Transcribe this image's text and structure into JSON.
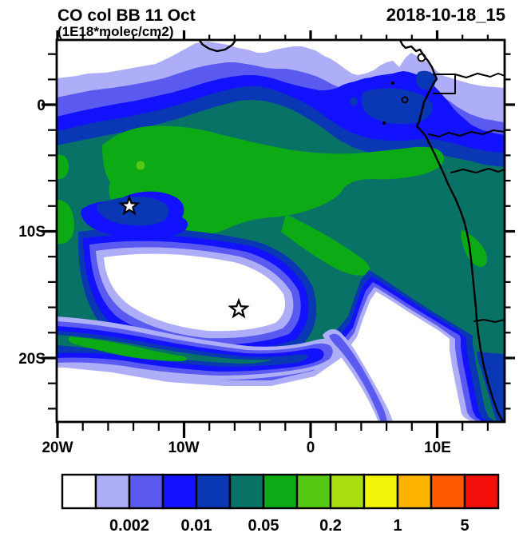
{
  "titles": {
    "left": "CO col BB 11 Oct",
    "sub": "(1E18*molec/cm2)",
    "right": "2018-10-18_15"
  },
  "chart_data": {
    "type": "heatmap",
    "title": "CO col BB 11 Oct",
    "units": "1E18*molec/cm2",
    "valid_time": "2018-10-18_15",
    "projection": "cylindrical lat-lon map, West Africa / South Atlantic",
    "lon_range": [
      -20,
      15.4
    ],
    "lat_range": [
      -25.2,
      5.1
    ],
    "xticks": [
      "20W",
      "10W",
      "0",
      "10E"
    ],
    "yticks": [
      "0",
      "10S",
      "20S"
    ],
    "contour_levels": [
      0.001,
      0.002,
      0.005,
      0.01,
      0.02,
      0.05,
      0.1,
      0.2,
      0.5,
      1,
      2,
      5
    ],
    "colorbar_tick_labels": [
      "0.002",
      "0.01",
      "0.05",
      "0.2",
      "1",
      "5"
    ],
    "palette": [
      "#FFFFFE",
      "#AEAEF8",
      "#5A5AF0",
      "#1212FF",
      "#0A37B4",
      "#097266",
      "#0CAA14",
      "#55C814",
      "#AADF0F",
      "#F2F50A",
      "#FFB400",
      "#FF5A00",
      "#F50F0A"
    ],
    "legend_position": "bottom horizontal colorbar, 13 cells, labels on alternate boundaries",
    "grid": false,
    "markers": [
      {
        "name": "star-marker-west",
        "lon": -14.4,
        "lat": -8.0
      },
      {
        "name": "star-marker-east",
        "lon": -5.7,
        "lat": -16.2
      }
    ],
    "field_summary": {
      "high_band": "green plume (0.05-0.1) across tropical South Atlantic 2S-13S",
      "low_regions": "white (<0.001) north of 2N, spiral void near 12S 8W, southeast corner"
    }
  }
}
